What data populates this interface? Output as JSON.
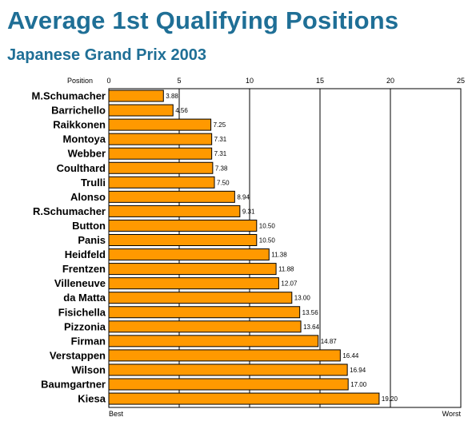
{
  "title": "Average 1st Qualifying Positions",
  "subtitle": "Japanese Grand Prix 2003",
  "colors": {
    "title": "#1f6f96",
    "bar": "#ff9900"
  },
  "chart_data": {
    "type": "bar",
    "orientation": "horizontal",
    "title": "Average 1st Qualifying Positions",
    "subtitle": "Japanese Grand Prix 2003",
    "xlabel": "Position",
    "xlim": [
      0,
      25
    ],
    "ticks": [
      0,
      5,
      10,
      15,
      20,
      25
    ],
    "axis_end_labels": {
      "min": "Best",
      "max": "Worst"
    },
    "grid": true,
    "categories": [
      "M.Schumacher",
      "Barrichello",
      "Raikkonen",
      "Montoya",
      "Webber",
      "Coulthard",
      "Trulli",
      "Alonso",
      "R.Schumacher",
      "Button",
      "Panis",
      "Heidfeld",
      "Frentzen",
      "Villeneuve",
      "da Matta",
      "Fisichella",
      "Pizzonia",
      "Firman",
      "Verstappen",
      "Wilson",
      "Baumgartner",
      "Kiesa"
    ],
    "values": [
      3.88,
      4.56,
      7.25,
      7.31,
      7.31,
      7.38,
      7.5,
      8.94,
      9.31,
      10.5,
      10.5,
      11.38,
      11.88,
      12.07,
      13.0,
      13.56,
      13.64,
      14.87,
      16.44,
      16.94,
      17.0,
      19.2
    ],
    "value_labels": [
      "3.88",
      "4.56",
      "7.25",
      "7.31",
      "7.31",
      "7.38",
      "7.50",
      "8.94",
      "9.31",
      "10.50",
      "10.50",
      "11.38",
      "11.88",
      "12.07",
      "13.00",
      "13.56",
      "13.64",
      "14.87",
      "16.44",
      "16.94",
      "17.00",
      "19.20"
    ]
  }
}
